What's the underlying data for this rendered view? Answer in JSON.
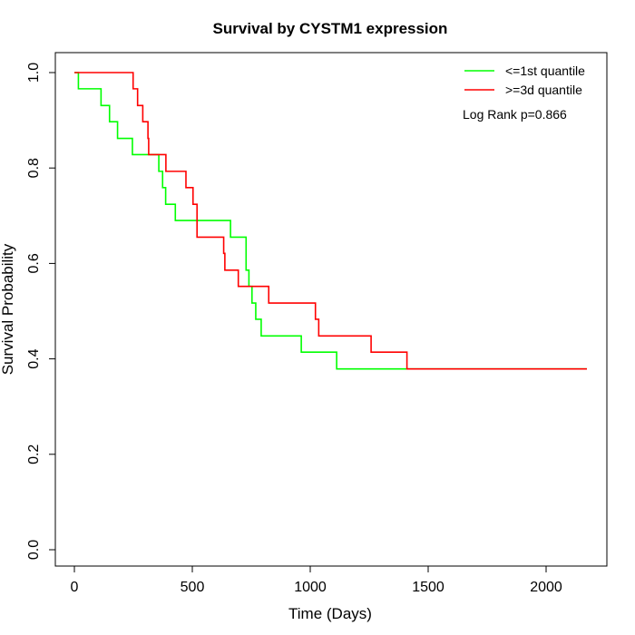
{
  "chart_data": {
    "type": "line",
    "title": "Survival by CYSTM1 expression",
    "xlabel": "Time (Days)",
    "ylabel": "Survival Probability",
    "xlim": [
      0,
      2200
    ],
    "ylim": [
      0,
      1
    ],
    "xticks": [
      0,
      500,
      1000,
      1500,
      2000
    ],
    "yticks": [
      0.0,
      0.2,
      0.4,
      0.6,
      0.8,
      1.0
    ],
    "ytick_labels": [
      "0.0",
      "0.2",
      "0.4",
      "0.6",
      "0.8",
      "1.0"
    ],
    "grid": false,
    "legend_placement": "top-right",
    "annotation": "Log Rank p=0.866",
    "series": [
      {
        "name": "<=1st quantile",
        "color": "#00ff00",
        "step": true,
        "x": [
          0,
          17,
          113,
          149,
          183,
          246,
          358,
          374,
          387,
          428,
          662,
          728,
          740,
          753,
          769,
          792,
          962,
          1112,
          2173
        ],
        "y": [
          1.0,
          0.966,
          0.931,
          0.897,
          0.862,
          0.828,
          0.793,
          0.759,
          0.724,
          0.69,
          0.655,
          0.586,
          0.552,
          0.517,
          0.483,
          0.448,
          0.414,
          0.379,
          0.379
        ]
      },
      {
        "name": ">=3d quantile",
        "color": "#ff0000",
        "step": true,
        "x": [
          0,
          249,
          268,
          290,
          312,
          315,
          388,
          473,
          503,
          520,
          633,
          638,
          695,
          824,
          1022,
          1036,
          1258,
          1410,
          2173
        ],
        "y": [
          1.0,
          0.966,
          0.931,
          0.897,
          0.862,
          0.828,
          0.793,
          0.759,
          0.724,
          0.655,
          0.621,
          0.586,
          0.552,
          0.517,
          0.483,
          0.448,
          0.414,
          0.379,
          0.379
        ]
      }
    ]
  }
}
